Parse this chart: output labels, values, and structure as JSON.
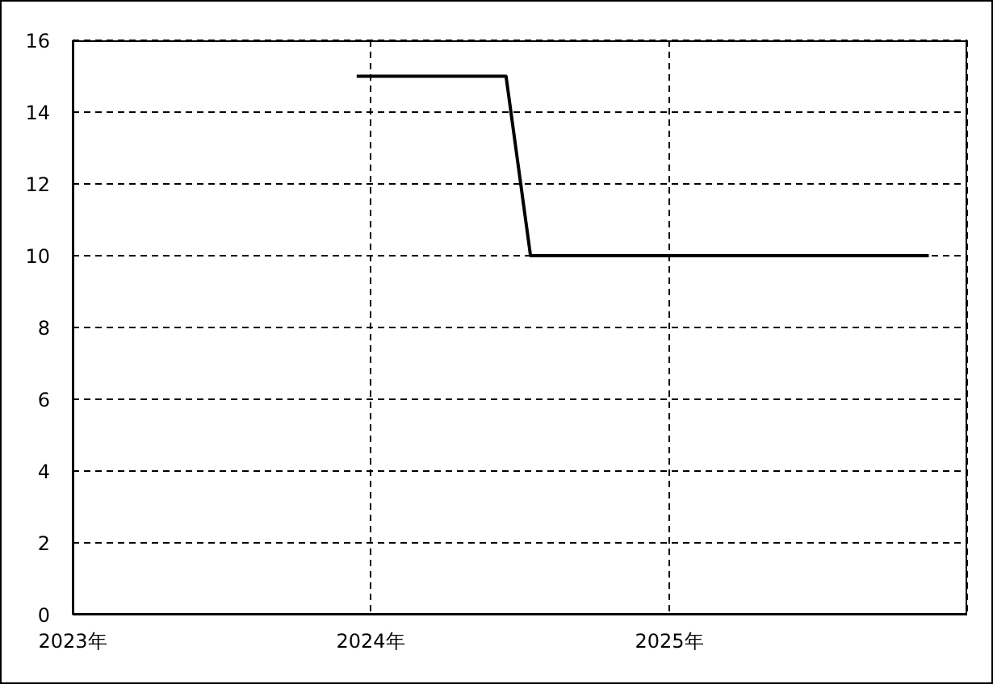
{
  "chart_data": {
    "type": "line",
    "x": [
      "2023-12-15",
      "2024-06-15",
      "2024-07-15",
      "2025-11-15"
    ],
    "series": [
      {
        "color": "#000000",
        "values": [
          15,
          15,
          10,
          10
        ]
      }
    ],
    "xlim": [
      "2023-01-01",
      "2026-01-01"
    ],
    "xticks": [
      {
        "value": "2023-01-01",
        "label": "2023年"
      },
      {
        "value": "2024-01-01",
        "label": "2024年"
      },
      {
        "value": "2025-01-01",
        "label": "2025年"
      }
    ],
    "ylim": [
      0,
      16
    ],
    "yticks": [
      0,
      2,
      4,
      6,
      8,
      10,
      12,
      14,
      16
    ],
    "grid": true,
    "marker": "none",
    "line_style": "solid"
  }
}
